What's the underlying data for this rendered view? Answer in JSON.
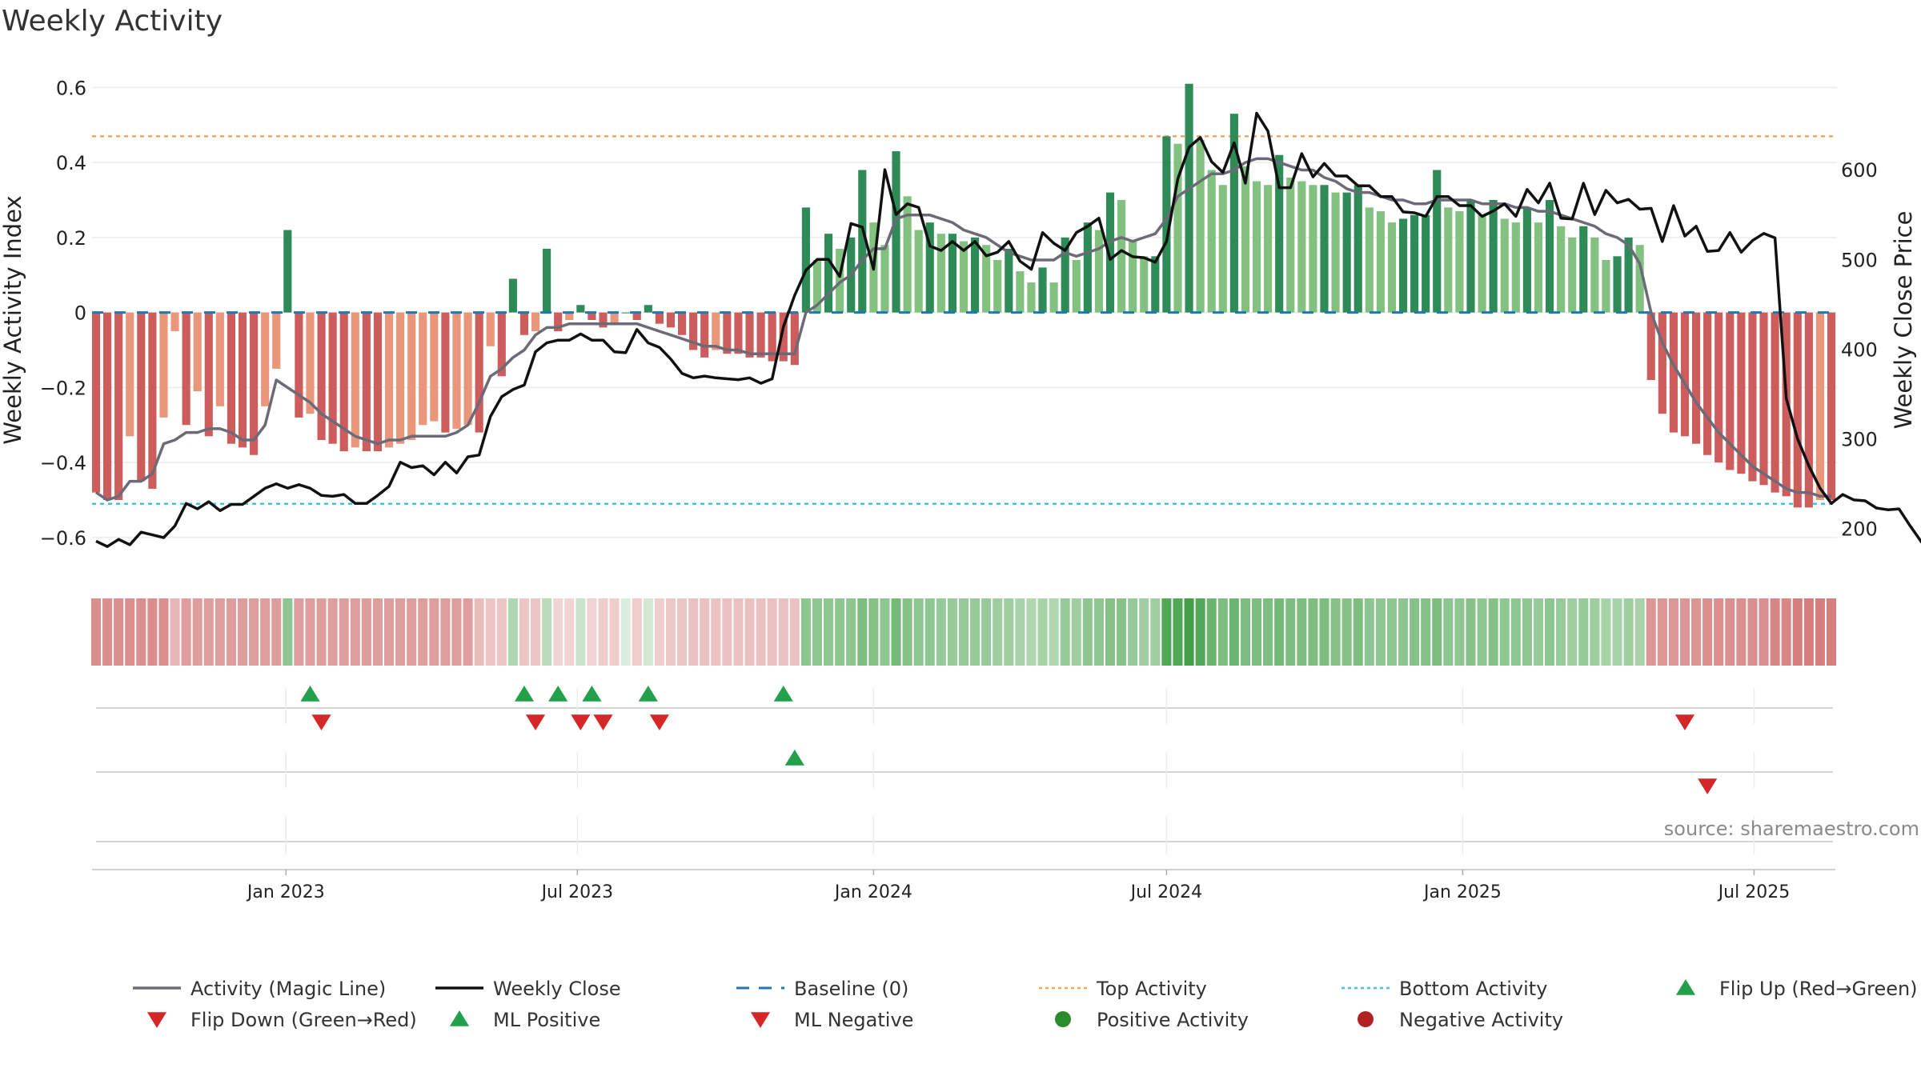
{
  "title": "Weekly Activity",
  "source": "source: sharemaestro.com",
  "colors": {
    "green_dark": "#2e8b57",
    "green_light": "#82c17f",
    "red_dark": "#cd5c5c",
    "red_light": "#e9967a",
    "magic_line": "#6b6b78",
    "weekly_close": "#111111",
    "baseline": "#1f77b4",
    "top": "#f4a460",
    "bottom": "#40c4d8",
    "marker_green": "#22a04b",
    "marker_red": "#d62728"
  },
  "chart_data": {
    "type": "bar",
    "x_start": "2022-09-05",
    "x_step_days": 7,
    "left_axis": {
      "label": "Weekly Activity Index",
      "ticks": [
        0.6,
        0.4,
        0.2,
        0,
        -0.2,
        -0.4,
        -0.6
      ],
      "tick_labels": [
        "0.6",
        "0.4",
        "0.2",
        "0",
        "−0.2",
        "−0.4",
        "−0.6"
      ],
      "ylim": [
        -0.66,
        0.62
      ]
    },
    "right_axis": {
      "label": "Weekly Close Price",
      "ticks": [
        600,
        500,
        400,
        300,
        200
      ],
      "tick_labels": [
        "600",
        "500",
        "400",
        "300",
        "200"
      ],
      "ylim": [
        165,
        700
      ]
    },
    "x_ticks": [
      {
        "date": "2023-01-01",
        "label": "Jan 2023"
      },
      {
        "date": "2023-07-01",
        "label": "Jul 2023"
      },
      {
        "date": "2024-01-01",
        "label": "Jan 2024"
      },
      {
        "date": "2024-07-01",
        "label": "Jul 2024"
      },
      {
        "date": "2025-01-01",
        "label": "Jan 2025"
      },
      {
        "date": "2025-07-01",
        "label": "Jul 2025"
      }
    ],
    "top_activity": 0.47,
    "bottom_activity": -0.51,
    "activity": [
      -0.48,
      -0.5,
      -0.5,
      -0.33,
      -0.45,
      -0.47,
      -0.28,
      -0.05,
      -0.3,
      -0.21,
      -0.33,
      -0.25,
      -0.35,
      -0.36,
      -0.38,
      -0.25,
      -0.15,
      0.22,
      -0.28,
      -0.27,
      -0.34,
      -0.35,
      -0.37,
      -0.36,
      -0.37,
      -0.37,
      -0.36,
      -0.35,
      -0.34,
      -0.3,
      -0.29,
      -0.32,
      -0.31,
      -0.3,
      -0.32,
      -0.09,
      -0.17,
      0.09,
      -0.06,
      -0.05,
      0.17,
      -0.05,
      -0.02,
      0.02,
      -0.02,
      -0.04,
      -0.03,
      0.0,
      -0.02,
      0.02,
      -0.03,
      -0.04,
      -0.06,
      -0.1,
      -0.12,
      -0.1,
      -0.11,
      -0.11,
      -0.12,
      -0.12,
      -0.13,
      -0.13,
      -0.14,
      0.28,
      0.14,
      0.21,
      0.17,
      0.2,
      0.38,
      0.24,
      0.18,
      0.43,
      0.31,
      0.22,
      0.24,
      0.21,
      0.21,
      0.19,
      0.2,
      0.18,
      0.14,
      0.17,
      0.11,
      0.08,
      0.12,
      0.08,
      0.2,
      0.14,
      0.24,
      0.22,
      0.32,
      0.3,
      0.19,
      0.15,
      0.15,
      0.47,
      0.45,
      0.61,
      0.46,
      0.38,
      0.34,
      0.53,
      0.39,
      0.35,
      0.34,
      0.42,
      0.36,
      0.35,
      0.34,
      0.34,
      0.32,
      0.32,
      0.34,
      0.28,
      0.27,
      0.24,
      0.25,
      0.26,
      0.26,
      0.38,
      0.28,
      0.27,
      0.3,
      0.26,
      0.3,
      0.25,
      0.24,
      0.28,
      0.24,
      0.3,
      0.23,
      0.2,
      0.23,
      0.2,
      0.14,
      0.15,
      0.2,
      0.18,
      -0.18,
      -0.27,
      -0.32,
      -0.33,
      -0.35,
      -0.38,
      -0.4,
      -0.42,
      -0.43,
      -0.45,
      -0.46,
      -0.48,
      -0.49,
      -0.52,
      -0.52,
      -0.5,
      -0.5
    ],
    "magic_line": [
      -0.48,
      -0.5,
      -0.49,
      -0.45,
      -0.45,
      -0.43,
      -0.35,
      -0.34,
      -0.32,
      -0.32,
      -0.31,
      -0.31,
      -0.32,
      -0.34,
      -0.34,
      -0.3,
      -0.18,
      -0.2,
      -0.22,
      -0.24,
      -0.27,
      -0.29,
      -0.31,
      -0.33,
      -0.34,
      -0.35,
      -0.34,
      -0.34,
      -0.33,
      -0.33,
      -0.33,
      -0.33,
      -0.32,
      -0.3,
      -0.24,
      -0.17,
      -0.15,
      -0.12,
      -0.1,
      -0.06,
      -0.04,
      -0.04,
      -0.03,
      -0.03,
      -0.03,
      -0.03,
      -0.03,
      -0.03,
      -0.03,
      -0.04,
      -0.05,
      -0.06,
      -0.07,
      -0.08,
      -0.09,
      -0.09,
      -0.1,
      -0.1,
      -0.11,
      -0.11,
      -0.11,
      -0.11,
      -0.11,
      0.0,
      0.02,
      0.05,
      0.08,
      0.1,
      0.14,
      0.17,
      0.17,
      0.25,
      0.26,
      0.26,
      0.26,
      0.25,
      0.24,
      0.22,
      0.21,
      0.2,
      0.18,
      0.16,
      0.15,
      0.14,
      0.14,
      0.14,
      0.16,
      0.15,
      0.16,
      0.17,
      0.19,
      0.2,
      0.19,
      0.2,
      0.21,
      0.25,
      0.31,
      0.33,
      0.35,
      0.37,
      0.37,
      0.38,
      0.4,
      0.41,
      0.41,
      0.4,
      0.39,
      0.38,
      0.38,
      0.36,
      0.35,
      0.33,
      0.32,
      0.32,
      0.31,
      0.3,
      0.3,
      0.29,
      0.29,
      0.3,
      0.3,
      0.3,
      0.3,
      0.29,
      0.29,
      0.29,
      0.28,
      0.28,
      0.27,
      0.27,
      0.26,
      0.25,
      0.24,
      0.23,
      0.21,
      0.2,
      0.18,
      0.13,
      0.0,
      -0.08,
      -0.14,
      -0.19,
      -0.24,
      -0.28,
      -0.32,
      -0.35,
      -0.38,
      -0.41,
      -0.43,
      -0.45,
      -0.47,
      -0.48,
      -0.48,
      -0.49,
      -0.49
    ],
    "weekly_close": [
      186,
      180,
      188,
      182,
      196,
      193,
      190,
      203,
      228,
      222,
      230,
      220,
      227,
      227,
      236,
      245,
      250,
      245,
      249,
      245,
      237,
      236,
      238,
      228,
      228,
      237,
      247,
      274,
      268,
      270,
      260,
      274,
      262,
      280,
      282,
      325,
      347,
      355,
      360,
      397,
      407,
      410,
      410,
      417,
      410,
      410,
      397,
      396,
      422,
      407,
      402,
      389,
      373,
      368,
      370,
      368,
      367,
      366,
      368,
      362,
      367,
      425,
      460,
      488,
      500,
      500,
      481,
      540,
      536,
      489,
      600,
      550,
      562,
      558,
      515,
      510,
      520,
      510,
      520,
      504,
      508,
      520,
      498,
      489,
      530,
      518,
      510,
      530,
      537,
      546,
      500,
      510,
      503,
      502,
      497,
      520,
      590,
      625,
      636,
      609,
      597,
      630,
      585,
      663,
      643,
      580,
      580,
      618,
      592,
      607,
      593,
      593,
      582,
      582,
      570,
      570,
      553,
      552,
      548,
      570,
      570,
      560,
      560,
      548,
      554,
      562,
      548,
      578,
      563,
      585,
      546,
      545,
      585,
      550,
      577,
      563,
      567,
      556,
      557,
      520,
      560,
      526,
      537,
      509,
      510,
      530,
      508,
      521,
      529,
      524,
      345,
      300,
      270,
      245,
      228,
      238,
      232,
      231,
      223,
      221,
      222,
      203,
      185,
      191,
      183,
      181,
      190,
      192,
      185,
      188
    ],
    "strip": [
      -0.55,
      -0.55,
      -0.55,
      -0.55,
      -0.55,
      -0.55,
      -0.55,
      -0.3,
      -0.45,
      -0.45,
      -0.45,
      -0.45,
      -0.45,
      -0.45,
      -0.45,
      -0.45,
      -0.45,
      0.5,
      -0.45,
      -0.45,
      -0.45,
      -0.45,
      -0.45,
      -0.45,
      -0.45,
      -0.45,
      -0.45,
      -0.45,
      -0.45,
      -0.45,
      -0.45,
      -0.45,
      -0.45,
      -0.45,
      -0.25,
      -0.2,
      -0.2,
      0.3,
      -0.2,
      -0.2,
      0.25,
      -0.1,
      -0.1,
      0.15,
      -0.12,
      -0.15,
      -0.15,
      0.05,
      -0.15,
      0.1,
      -0.15,
      -0.18,
      -0.2,
      -0.22,
      -0.22,
      -0.22,
      -0.22,
      -0.22,
      -0.22,
      -0.22,
      -0.22,
      -0.22,
      -0.22,
      0.5,
      0.5,
      0.5,
      0.5,
      0.5,
      0.6,
      0.55,
      0.5,
      0.65,
      0.55,
      0.5,
      0.5,
      0.45,
      0.45,
      0.45,
      0.45,
      0.45,
      0.4,
      0.4,
      0.35,
      0.3,
      0.35,
      0.3,
      0.45,
      0.4,
      0.5,
      0.5,
      0.55,
      0.55,
      0.45,
      0.4,
      0.4,
      0.85,
      0.85,
      0.95,
      0.85,
      0.7,
      0.6,
      0.7,
      0.6,
      0.6,
      0.6,
      0.65,
      0.6,
      0.6,
      0.6,
      0.6,
      0.55,
      0.55,
      0.6,
      0.5,
      0.5,
      0.5,
      0.5,
      0.55,
      0.55,
      0.6,
      0.5,
      0.5,
      0.55,
      0.5,
      0.55,
      0.5,
      0.5,
      0.5,
      0.45,
      0.5,
      0.45,
      0.4,
      0.45,
      0.4,
      0.35,
      0.35,
      0.4,
      0.35,
      -0.5,
      -0.5,
      -0.5,
      -0.5,
      -0.5,
      -0.55,
      -0.55,
      -0.55,
      -0.55,
      -0.55,
      -0.55,
      -0.6,
      -0.6,
      -0.65,
      -0.65,
      -0.65,
      -0.65
    ],
    "flip_up": [
      "2023-01-16",
      "2023-05-29",
      "2023-06-19",
      "2023-07-10",
      "2023-08-14",
      "2023-11-06"
    ],
    "flip_down": [
      "2023-01-23",
      "2023-06-05",
      "2023-07-03",
      "2023-07-17",
      "2023-08-21",
      "2025-05-19"
    ],
    "ml_positive": [
      "2023-11-13"
    ],
    "ml_negative": [
      "2025-06-02"
    ]
  },
  "legend": [
    {
      "label": "Activity (Magic Line)",
      "symbol": "line",
      "color": "#6b6b78"
    },
    {
      "label": "Weekly Close",
      "symbol": "line",
      "color": "#111111"
    },
    {
      "label": "Baseline (0)",
      "symbol": "dash",
      "color": "#1f77b4"
    },
    {
      "label": "Top Activity",
      "symbol": "dot",
      "color": "#f4a460"
    },
    {
      "label": "Bottom Activity",
      "symbol": "dot",
      "color": "#40c4d8"
    },
    {
      "label": "Flip Up (Red→Green)",
      "symbol": "tri-up",
      "color": "#22a04b"
    },
    {
      "label": "Flip Down (Green→Red)",
      "symbol": "tri-down",
      "color": "#d62728"
    },
    {
      "label": "ML Positive",
      "symbol": "tri-up",
      "color": "#22a04b"
    },
    {
      "label": "ML Negative",
      "symbol": "tri-down",
      "color": "#d62728"
    },
    {
      "label": "Positive Activity",
      "symbol": "circle",
      "color": "#2b8a2b"
    },
    {
      "label": "Negative Activity",
      "symbol": "circle",
      "color": "#b22222"
    }
  ]
}
